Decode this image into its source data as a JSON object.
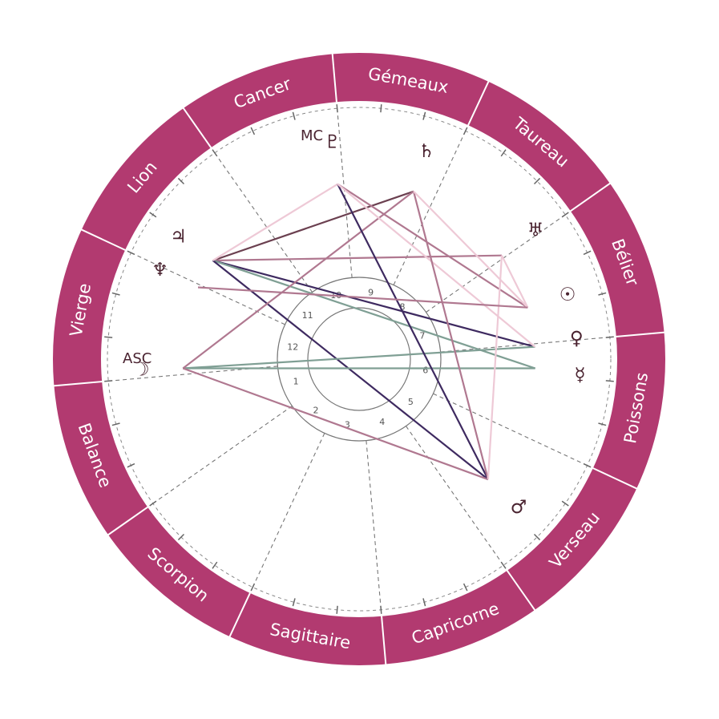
{
  "colors": {
    "ring": "#b23a70",
    "ring_divider": "#ffffff",
    "glyph": "#4a2330",
    "house_circle": "#777777",
    "dashed": "#777777"
  },
  "signs": [
    {
      "name": "Bélier"
    },
    {
      "name": "Taureau"
    },
    {
      "name": "Gémeaux"
    },
    {
      "name": "Cancer"
    },
    {
      "name": "Lion"
    },
    {
      "name": "Vierge"
    },
    {
      "name": "Balance"
    },
    {
      "name": "Scorpion"
    },
    {
      "name": "Sagittaire"
    },
    {
      "name": "Capricorne"
    },
    {
      "name": "Verseau"
    },
    {
      "name": "Poissons"
    }
  ],
  "houses": [
    "1",
    "2",
    "3",
    "4",
    "5",
    "6",
    "7",
    "8",
    "9",
    "10",
    "11",
    "12"
  ],
  "angles": {
    "asc": "ASC",
    "mc": "MC"
  },
  "planets": [
    {
      "name": "sun",
      "glyph": "☉",
      "lon": 12
    },
    {
      "name": "moon",
      "glyph": "☽",
      "lon": 178
    },
    {
      "name": "mercury",
      "glyph": "☿",
      "lon": 352
    },
    {
      "name": "venus",
      "glyph": "♀",
      "lon": 359
    },
    {
      "name": "mars",
      "glyph": "♂",
      "lon": 312
    },
    {
      "name": "jupiter",
      "glyph": "♃",
      "lon": 141
    },
    {
      "name": "saturn",
      "glyph": "♄",
      "lon": 67
    },
    {
      "name": "uranus",
      "glyph": "♅",
      "lon": 31
    },
    {
      "name": "neptune",
      "glyph": "♆",
      "lon": 151
    },
    {
      "name": "pluto",
      "glyph": "♇",
      "lon": 92
    }
  ],
  "aspects": [
    {
      "a": "jupiter",
      "b": "saturn",
      "color": "#6b4050"
    },
    {
      "a": "jupiter",
      "b": "uranus",
      "color": "#b07890"
    },
    {
      "a": "jupiter",
      "b": "venus",
      "color": "#3e2a60"
    },
    {
      "a": "jupiter",
      "b": "mercury",
      "color": "#7f9f94"
    },
    {
      "a": "jupiter",
      "b": "mars",
      "color": "#3e2a60"
    },
    {
      "a": "jupiter",
      "b": "pluto",
      "color": "#eec9d6"
    },
    {
      "a": "moon",
      "b": "venus",
      "color": "#7f9f94"
    },
    {
      "a": "moon",
      "b": "mercury",
      "color": "#7f9f94"
    },
    {
      "a": "moon",
      "b": "saturn",
      "color": "#b07890"
    },
    {
      "a": "moon",
      "b": "mars",
      "color": "#b07890"
    },
    {
      "a": "pluto",
      "b": "mars",
      "color": "#3e2a60"
    },
    {
      "a": "pluto",
      "b": "sun",
      "color": "#b07890"
    },
    {
      "a": "pluto",
      "b": "venus",
      "color": "#eec9d6"
    },
    {
      "a": "saturn",
      "b": "mars",
      "color": "#b07890"
    },
    {
      "a": "saturn",
      "b": "sun",
      "color": "#eec9d6"
    },
    {
      "a": "uranus",
      "b": "mars",
      "color": "#eec9d6"
    },
    {
      "a": "uranus",
      "b": "sun",
      "color": "#eec9d6"
    },
    {
      "a": "neptune",
      "b": "sun",
      "color": "#b07890"
    }
  ]
}
